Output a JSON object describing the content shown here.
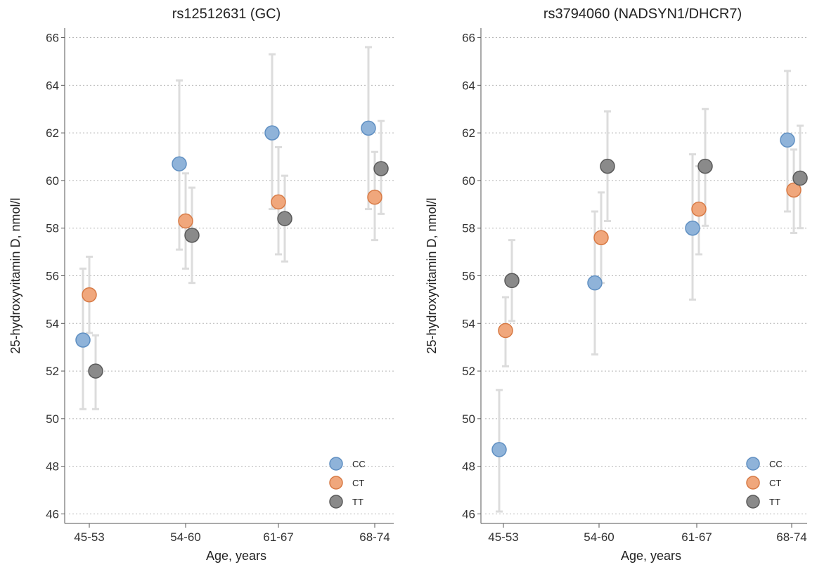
{
  "chart_data": [
    {
      "type": "scatter",
      "title": "rs12512631 (GC)",
      "xlabel": "Age, years",
      "ylabel": "25-hydroxyvitamin D, nmol/l",
      "categories": [
        "45-53",
        "54-60",
        "61-67",
        "68-74"
      ],
      "ylim": [
        45.6,
        66.4
      ],
      "yticks": [
        46,
        48,
        50,
        52,
        54,
        56,
        58,
        60,
        62,
        64,
        66
      ],
      "grid": "horizontal dotted",
      "legend_position": "bottom-right",
      "error_bars": "95% CI (low, high)",
      "series": [
        {
          "name": "CC",
          "color": "#8fb3d9",
          "stroke": "#5f8fc2",
          "values": [
            53.3,
            60.7,
            62.0,
            62.2
          ],
          "low": [
            50.4,
            57.1,
            58.8,
            58.8
          ],
          "high": [
            56.3,
            64.2,
            65.3,
            65.6
          ]
        },
        {
          "name": "CT",
          "color": "#f0a77c",
          "stroke": "#d77a45",
          "values": [
            55.2,
            58.3,
            59.1,
            59.3
          ],
          "low": [
            53.6,
            56.3,
            56.9,
            57.5
          ],
          "high": [
            56.8,
            60.3,
            61.4,
            61.2
          ]
        },
        {
          "name": "TT",
          "color": "#8a8a8a",
          "stroke": "#5a5a5a",
          "values": [
            52.0,
            57.7,
            58.4,
            60.5
          ],
          "low": [
            50.4,
            55.7,
            56.6,
            58.6
          ],
          "high": [
            53.5,
            59.7,
            60.2,
            62.5
          ]
        }
      ]
    },
    {
      "type": "scatter",
      "title": "rs3794060 (NADSYN1/DHCR7)",
      "xlabel": "Age, years",
      "ylabel": "25-hydroxyvitamin D, nmol/l",
      "categories": [
        "45-53",
        "54-60",
        "61-67",
        "68-74"
      ],
      "ylim": [
        45.6,
        66.4
      ],
      "yticks": [
        46,
        48,
        50,
        52,
        54,
        56,
        58,
        60,
        62,
        64,
        66
      ],
      "grid": "horizontal dotted",
      "legend_position": "bottom-right",
      "error_bars": "95% CI (low, high)",
      "series": [
        {
          "name": "CC",
          "color": "#8fb3d9",
          "stroke": "#5f8fc2",
          "values": [
            48.7,
            55.7,
            58.0,
            61.7
          ],
          "low": [
            46.1,
            52.7,
            55.0,
            58.7
          ],
          "high": [
            51.2,
            58.7,
            61.1,
            64.6
          ]
        },
        {
          "name": "CT",
          "color": "#f0a77c",
          "stroke": "#d77a45",
          "values": [
            53.7,
            57.6,
            58.8,
            59.6
          ],
          "low": [
            52.2,
            55.7,
            56.9,
            57.8
          ],
          "high": [
            55.1,
            59.5,
            60.6,
            61.3
          ]
        },
        {
          "name": "TT",
          "color": "#8a8a8a",
          "stroke": "#5a5a5a",
          "values": [
            55.8,
            60.6,
            60.6,
            60.1
          ],
          "low": [
            54.1,
            58.3,
            58.1,
            58.0
          ],
          "high": [
            57.5,
            62.9,
            63.0,
            62.3
          ]
        }
      ]
    }
  ]
}
